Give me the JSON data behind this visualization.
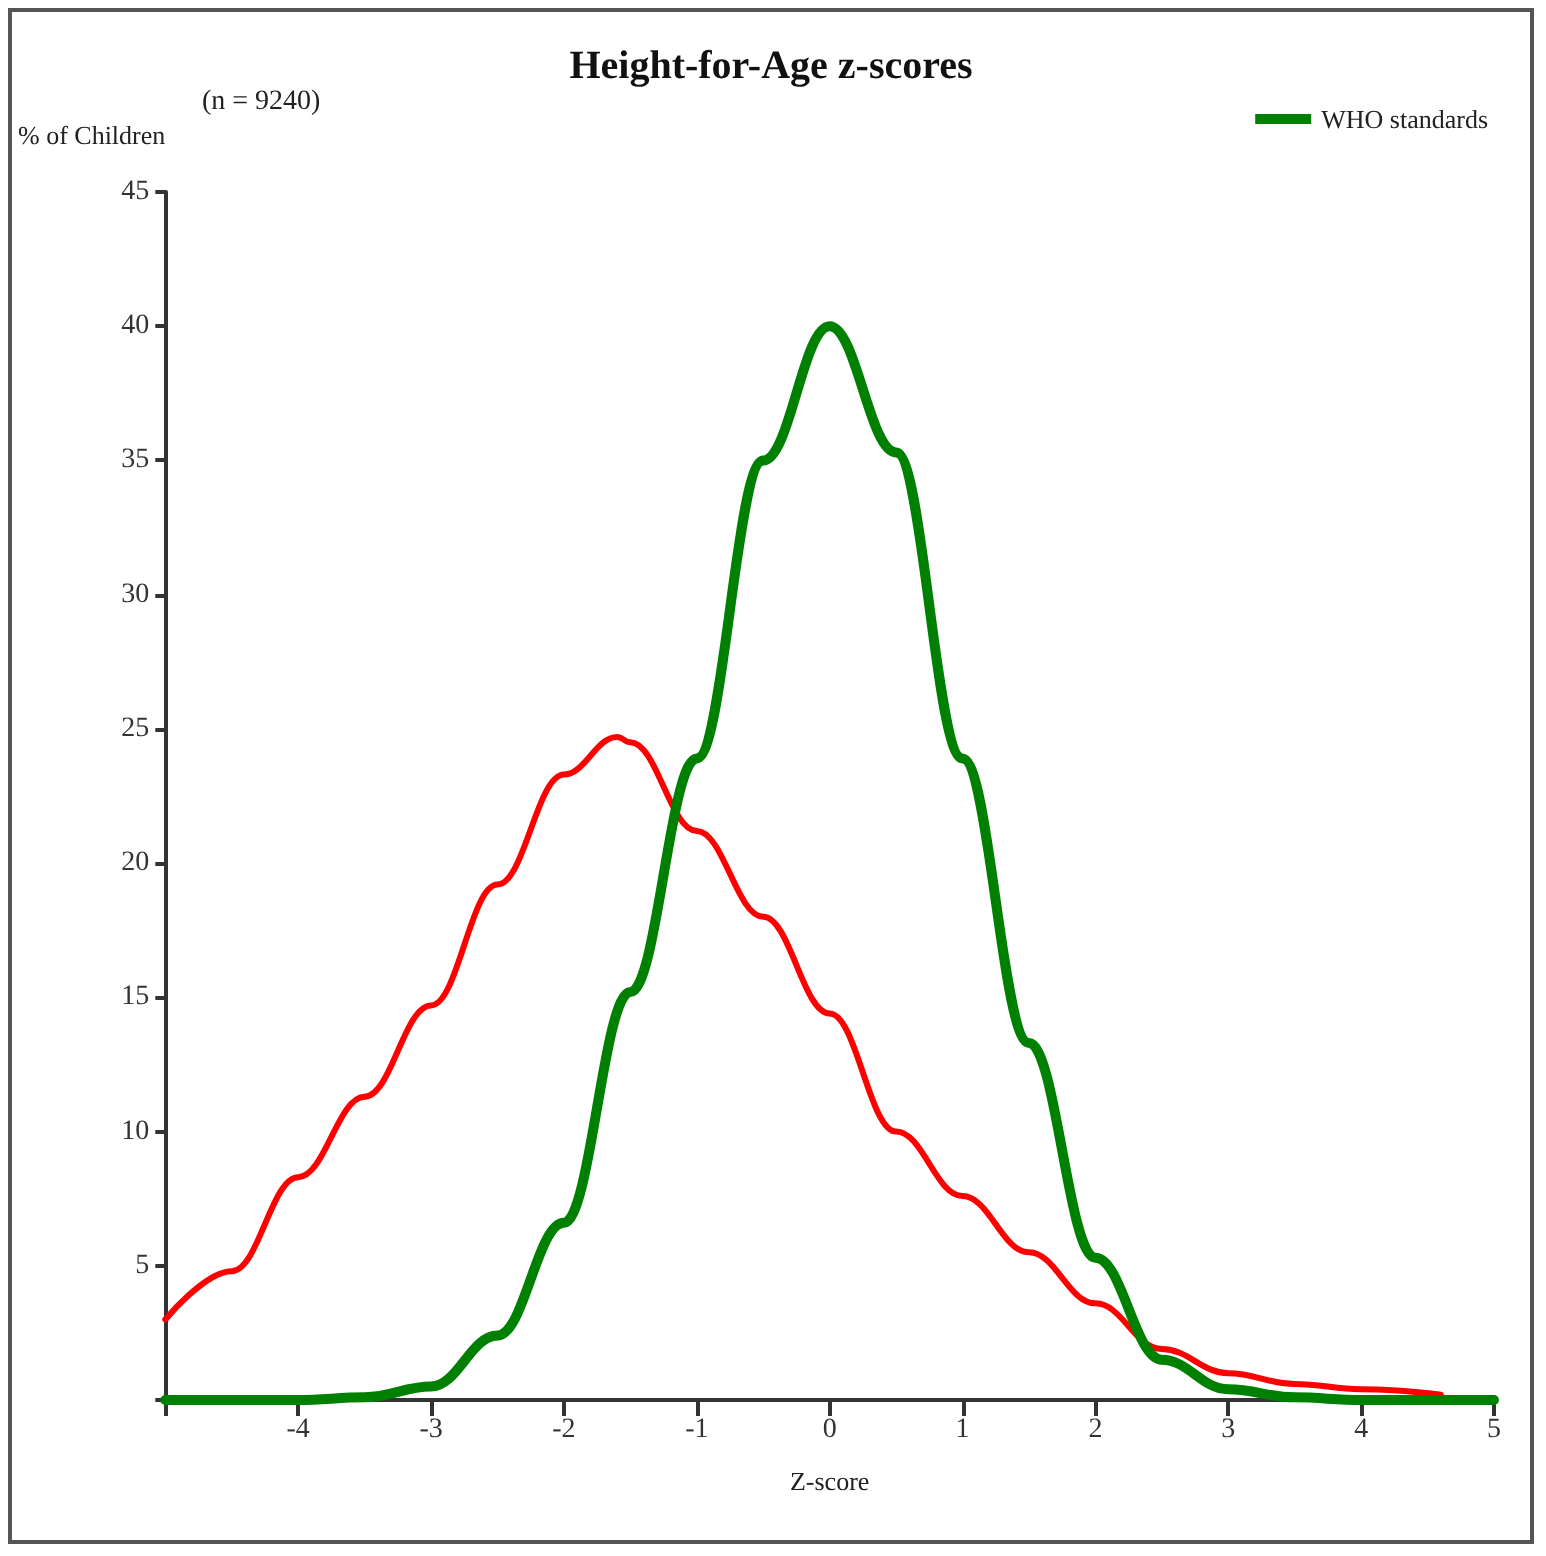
{
  "chart_data": {
    "type": "line",
    "title": "Height-for-Age z-scores",
    "xlabel": "Z-score",
    "ylabel": "% of Children",
    "annotations": [
      "(n = 9240)"
    ],
    "xlim": [
      -5,
      5
    ],
    "xticks": [
      {
        "value": -5,
        "label": null
      },
      -4,
      -3,
      -2,
      -1,
      0,
      1,
      2,
      3,
      4,
      5
    ],
    "ylim": [
      0,
      45
    ],
    "yticks": [
      {
        "value": 0,
        "label": null
      },
      5,
      10,
      15,
      20,
      25,
      30,
      35,
      40,
      45
    ],
    "grid": false,
    "legend": "top right",
    "marker": "none",
    "line_style": "solid",
    "series": [
      {
        "color": "#ff0000",
        "x": [
          -5,
          -4.5,
          -4,
          -3.5,
          -3,
          -2.5,
          -2,
          -1.6,
          -1.5,
          -1,
          -0.5,
          0,
          0.5,
          1,
          1.5,
          2,
          2.5,
          3,
          3.5,
          4,
          4.6
        ],
        "values": [
          3.0,
          4.8,
          8.3,
          11.3,
          14.7,
          19.2,
          23.3,
          24.7,
          24.5,
          21.2,
          18.0,
          14.4,
          10.0,
          7.6,
          5.5,
          3.6,
          1.9,
          1.0,
          0.6,
          0.4,
          0.2
        ]
      },
      {
        "name": "WHO standards",
        "color": "#008000",
        "x": [
          -5,
          -4,
          -3.5,
          -3,
          -2.5,
          -2,
          -1.5,
          -1,
          -0.5,
          0,
          0.5,
          1,
          1.5,
          2,
          2.5,
          3,
          3.5,
          4,
          5
        ],
        "values": [
          0,
          0,
          0.1,
          0.5,
          2.4,
          6.6,
          15.2,
          23.9,
          35.0,
          40,
          35.3,
          23.9,
          13.3,
          5.3,
          1.5,
          0.4,
          0.1,
          0,
          0
        ]
      }
    ]
  }
}
